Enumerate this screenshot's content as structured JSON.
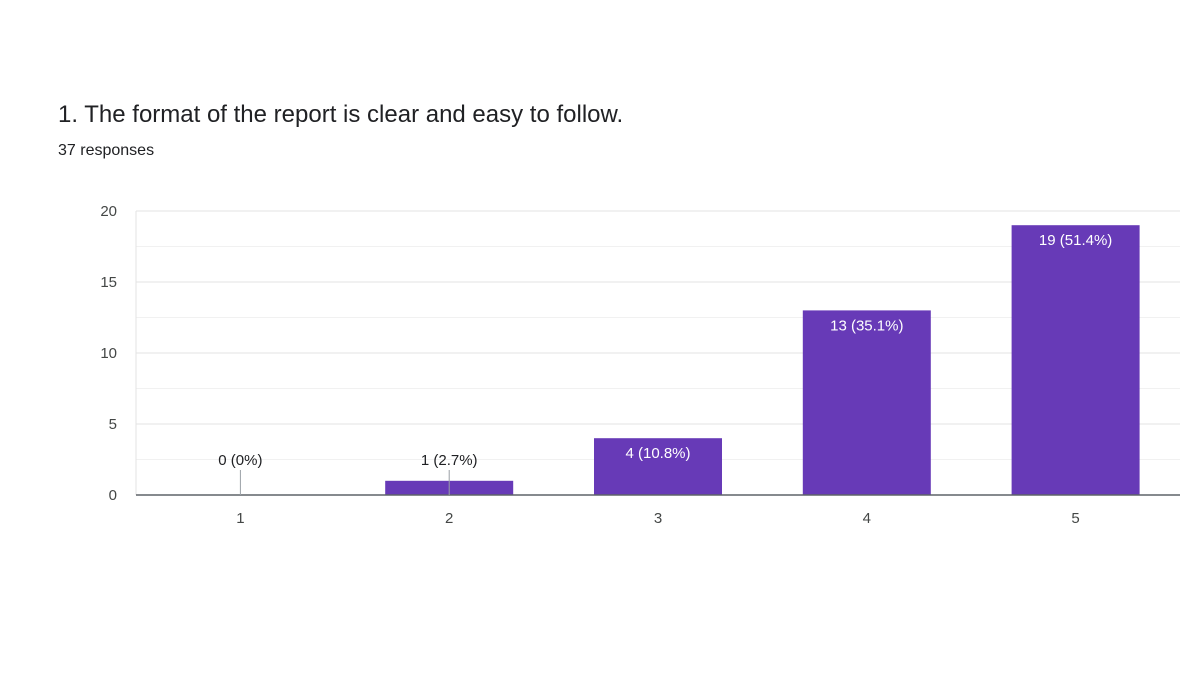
{
  "question": {
    "title": "1. The format of the report is clear and easy to follow.",
    "responses": "37 responses"
  },
  "colors": {
    "bar": "#673ab7",
    "text": "#202124",
    "axis": "#444746",
    "grid": "#e8e8e8"
  },
  "chart_data": {
    "type": "bar",
    "categories": [
      "1",
      "2",
      "3",
      "4",
      "5"
    ],
    "values": [
      0,
      1,
      4,
      13,
      19
    ],
    "data_labels": [
      "0 (0%)",
      "1 (2.7%)",
      "4 (10.8%)",
      "13 (35.1%)",
      "19 (51.4%)"
    ],
    "title": "",
    "xlabel": "",
    "ylabel": "",
    "ylim": [
      0,
      20
    ],
    "yticks": [
      0,
      5,
      10,
      15,
      20
    ],
    "grid": true,
    "legend": "none"
  }
}
